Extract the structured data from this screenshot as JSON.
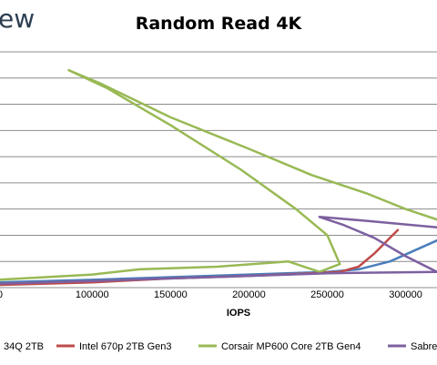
{
  "brand": {
    "logo_text": "ew"
  },
  "chart_data": {
    "type": "line",
    "title": "Random Read 4K",
    "xlabel": "IOPS",
    "ylabel": "",
    "xlim": [
      40000,
      320000
    ],
    "ylim": [
      0,
      9
    ],
    "x_ticks": [
      100000,
      150000,
      200000,
      250000,
      300000
    ],
    "x_tick_labels": [
      "100000",
      "150000",
      "200000",
      "250000",
      "300000"
    ],
    "first_tick_label_fragment": "0",
    "grid": "horizontal",
    "legend_position": "bottom",
    "series": [
      {
        "legend_label": "34Q 2TB",
        "color": "#4a7ebb",
        "points": [
          [
            40000,
            0.2
          ],
          [
            100000,
            0.3
          ],
          [
            150000,
            0.4
          ],
          [
            200000,
            0.5
          ],
          [
            250000,
            0.6
          ],
          [
            270000,
            0.7
          ],
          [
            290000,
            1.0
          ],
          [
            305000,
            1.4
          ],
          [
            320000,
            1.8
          ]
        ]
      },
      {
        "legend_label": "Intel 670p 2TB Gen3",
        "color": "#be4b48",
        "points": [
          [
            40000,
            0.1
          ],
          [
            100000,
            0.2
          ],
          [
            150000,
            0.35
          ],
          [
            200000,
            0.45
          ],
          [
            240000,
            0.55
          ],
          [
            258000,
            0.6
          ],
          [
            270000,
            0.8
          ],
          [
            280000,
            1.3
          ],
          [
            290000,
            1.9
          ],
          [
            295000,
            2.2
          ]
        ]
      },
      {
        "legend_label": "Corsair MP600 Core 2TB Gen4",
        "color": "#98b954",
        "points": [
          [
            40000,
            0.3
          ],
          [
            100000,
            0.5
          ],
          [
            130000,
            0.7
          ],
          [
            180000,
            0.8
          ],
          [
            225000,
            1.0
          ],
          [
            245000,
            0.6
          ],
          [
            258000,
            0.9
          ],
          [
            250000,
            2.0
          ],
          [
            230000,
            3.0
          ],
          [
            195000,
            4.5
          ],
          [
            150000,
            6.2
          ],
          [
            110000,
            7.6
          ],
          [
            85000,
            8.3
          ],
          [
            105000,
            7.8
          ],
          [
            150000,
            6.5
          ],
          [
            200000,
            5.3
          ],
          [
            240000,
            4.3
          ],
          [
            275000,
            3.6
          ],
          [
            300000,
            3.0
          ],
          [
            320000,
            2.6
          ]
        ]
      },
      {
        "legend_label": "Sabre",
        "color": "#7d60a0",
        "points": [
          [
            40000,
            0.15
          ],
          [
            100000,
            0.25
          ],
          [
            150000,
            0.35
          ],
          [
            200000,
            0.45
          ],
          [
            250000,
            0.55
          ],
          [
            320000,
            0.6
          ],
          [
            300000,
            1.2
          ],
          [
            280000,
            1.9
          ],
          [
            260000,
            2.4
          ],
          [
            245000,
            2.7
          ],
          [
            275000,
            2.55
          ],
          [
            320000,
            2.3
          ]
        ]
      }
    ]
  }
}
